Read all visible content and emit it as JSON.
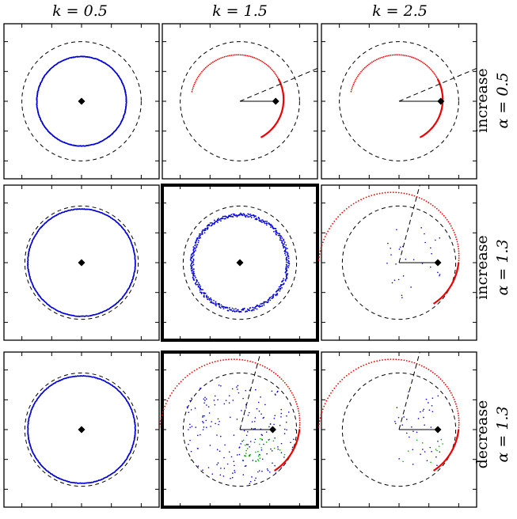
{
  "chart_data": {
    "type": "scatter",
    "layout": "grid-3x3",
    "columns": [
      {
        "label": "k = 0.5",
        "k": 0.5
      },
      {
        "label": "k = 1.5",
        "k": 1.5
      },
      {
        "label": "k = 2.5",
        "k": 2.5
      }
    ],
    "rows": [
      {
        "label_top": "increase",
        "label_bottom": "α = 0.5",
        "mode": "increase",
        "alpha": 0.5
      },
      {
        "label_top": "increase",
        "label_bottom": "α = 1.3",
        "mode": "increase",
        "alpha": 1.3
      },
      {
        "label_top": "decrease",
        "label_bottom": "α = 1.3",
        "mode": "decrease",
        "alpha": 1.3
      }
    ],
    "xlim": [
      -1.3,
      1.3
    ],
    "ylim": [
      -1.3,
      1.3
    ],
    "grid": false,
    "highlighted_panels": [
      [
        1,
        1
      ],
      [
        2,
        1
      ]
    ],
    "colors": {
      "reference_circle": "#000000",
      "blue_points": "#0000dd",
      "green_points": "#00aa00",
      "red_arc": "#ee0000",
      "center_marker": "#000000",
      "frame": "#000000"
    },
    "panels": [
      {
        "row": 0,
        "col": 0,
        "dashed_circle_r": 1.0,
        "blue_circle_r": 0.75,
        "blue_jitter": 0.004,
        "center_marker": [
          0,
          0
        ],
        "scatter_count": 0,
        "green_count": 0
      },
      {
        "row": 0,
        "col": 1,
        "dashed_circle_r": 1.0,
        "red_center": [
          0,
          0
        ],
        "red_r": 0.7,
        "red_solid_deg": [
          -60,
          30
        ],
        "red_dotted_deg": [
          30,
          170
        ],
        "red_spiral": 0.12,
        "center_marker": [
          0.6,
          0
        ],
        "line_end": [
          0.6,
          0
        ],
        "dashed_line_deg": 23,
        "scatter_count": 0,
        "green_count": 0
      },
      {
        "row": 0,
        "col": 2,
        "dashed_circle_r": 1.0,
        "red_center": [
          0,
          0
        ],
        "red_r": 0.7,
        "red_solid_deg": [
          -60,
          30
        ],
        "red_dotted_deg": [
          30,
          170
        ],
        "red_spiral": 0.12,
        "center_marker": [
          0.7,
          0
        ],
        "line_end": [
          0.7,
          0
        ],
        "dashed_line_deg": 23,
        "scatter_count": 0,
        "green_count": 0
      },
      {
        "row": 1,
        "col": 0,
        "dashed_circle_r": 0.95,
        "blue_circle_r": 0.9,
        "blue_jitter": 0.004,
        "center_marker": [
          0,
          0
        ],
        "scatter_count": 0,
        "green_count": 0
      },
      {
        "row": 1,
        "col": 1,
        "dashed_circle_r": 0.95,
        "blue_circle_r": 0.8,
        "blue_jitter": 0.03,
        "center_marker": [
          0,
          0
        ],
        "scatter_count": 0,
        "green_count": 0
      },
      {
        "row": 1,
        "col": 2,
        "dashed_circle_r": 0.95,
        "red_center": [
          0,
          0
        ],
        "red_r": 0.9,
        "red_solid_deg": [
          -50,
          0
        ],
        "red_dotted_deg": [
          0,
          180
        ],
        "red_spiral": 0.45,
        "center_marker": [
          0.65,
          0
        ],
        "line_end": [
          0.65,
          0
        ],
        "dashed_line_deg": 75,
        "scatter_count": 30,
        "scatter_region": {
          "x": [
            -0.2,
            0.7
          ],
          "y": [
            -0.6,
            0.6
          ]
        },
        "green_count": 0
      },
      {
        "row": 2,
        "col": 0,
        "dashed_circle_r": 0.95,
        "blue_circle_r": 0.9,
        "blue_jitter": 0.004,
        "center_marker": [
          0,
          0
        ],
        "scatter_count": 0,
        "green_count": 0
      },
      {
        "row": 2,
        "col": 1,
        "dashed_circle_r": 0.95,
        "red_center": [
          0,
          0
        ],
        "red_r": 0.9,
        "red_solid_deg": [
          -50,
          0
        ],
        "red_dotted_deg": [
          0,
          180
        ],
        "red_spiral": 0.45,
        "center_marker": [
          0.55,
          0
        ],
        "line_end": [
          0.55,
          0
        ],
        "dashed_line_deg": 75,
        "scatter_count": 220,
        "scatter_region": {
          "x": [
            -0.9,
            0.95
          ],
          "y": [
            -0.95,
            0.75
          ]
        },
        "green_count": 30
      },
      {
        "row": 2,
        "col": 2,
        "dashed_circle_r": 0.95,
        "red_center": [
          0,
          0
        ],
        "red_r": 0.9,
        "red_solid_deg": [
          -50,
          0
        ],
        "red_dotted_deg": [
          0,
          180
        ],
        "red_spiral": 0.45,
        "center_marker": [
          0.65,
          0
        ],
        "line_end": [
          0.65,
          0
        ],
        "dashed_line_deg": 75,
        "scatter_count": 40,
        "scatter_region": {
          "x": [
            -0.1,
            0.7
          ],
          "y": [
            -0.6,
            0.7
          ]
        },
        "green_count": 10
      }
    ]
  }
}
